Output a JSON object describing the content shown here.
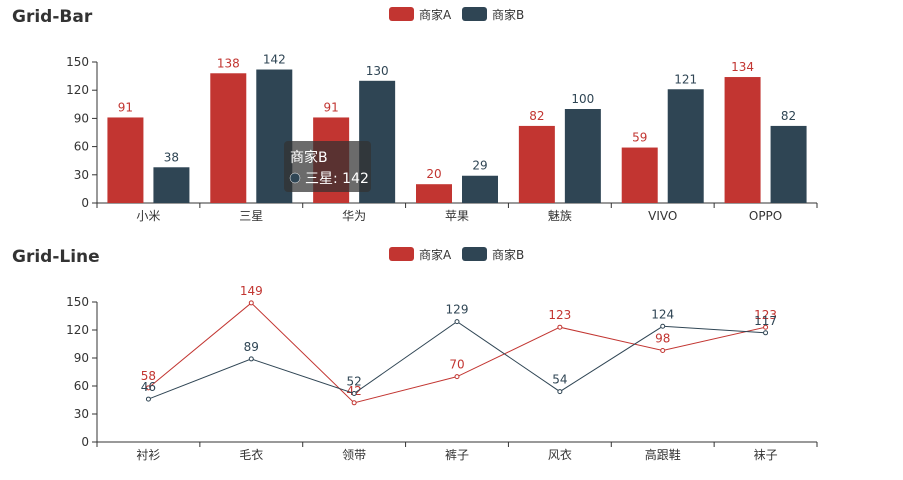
{
  "colors": {
    "series_a": "#c23531",
    "series_b": "#2f4554",
    "axis": "#333333",
    "tooltip_bg": "rgba(50,50,50,0.72)"
  },
  "chart_data": [
    {
      "type": "bar",
      "title": "Grid-Bar",
      "categories": [
        "小米",
        "三星",
        "华为",
        "苹果",
        "魅族",
        "VIVO",
        "OPPO"
      ],
      "series": [
        {
          "name": "商家A",
          "values": [
            91,
            138,
            91,
            20,
            82,
            59,
            134
          ]
        },
        {
          "name": "商家B",
          "values": [
            38,
            142,
            130,
            29,
            100,
            121,
            82
          ]
        }
      ],
      "y_ticks": [
        0,
        30,
        60,
        90,
        120,
        150
      ],
      "ylim": [
        0,
        150
      ],
      "legend_position": "top-center",
      "tooltip": {
        "title": "商家B",
        "line": "三星: 142"
      }
    },
    {
      "type": "line",
      "title": "Grid-Line",
      "categories": [
        "衬衫",
        "毛衣",
        "领带",
        "裤子",
        "风衣",
        "高跟鞋",
        "袜子"
      ],
      "series": [
        {
          "name": "商家A",
          "values": [
            58,
            149,
            42,
            70,
            123,
            98,
            123
          ]
        },
        {
          "name": "商家B",
          "values": [
            46,
            89,
            52,
            129,
            54,
            124,
            117
          ]
        }
      ],
      "y_ticks": [
        0,
        30,
        60,
        90,
        120,
        150
      ],
      "ylim": [
        0,
        150
      ],
      "legend_position": "top-center"
    }
  ]
}
